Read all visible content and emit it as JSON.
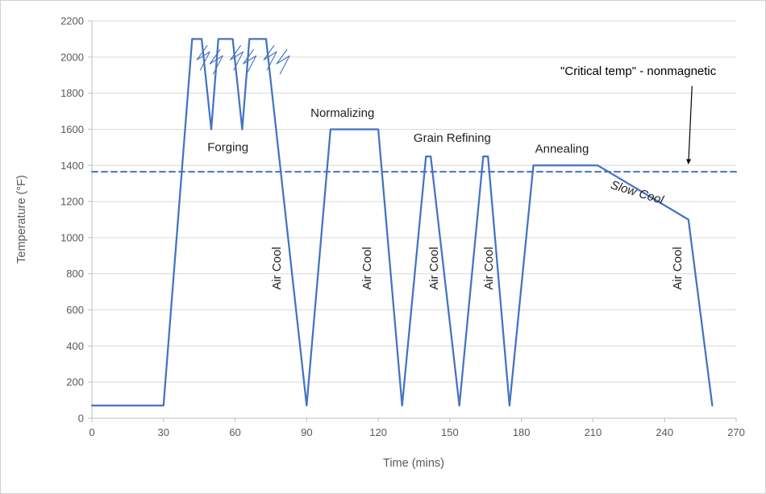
{
  "chart_data": {
    "type": "line",
    "title": "",
    "xlabel": "Time (mins)",
    "ylabel": "Temperature (°F)",
    "xlim": [
      0,
      270
    ],
    "ylim": [
      0,
      2200
    ],
    "x_ticks": [
      0,
      30,
      60,
      90,
      120,
      150,
      180,
      210,
      240,
      270
    ],
    "y_ticks": [
      0,
      200,
      400,
      600,
      800,
      1000,
      1200,
      1400,
      1600,
      1800,
      2000,
      2200
    ],
    "grid": "horizontal-only",
    "legend": "none",
    "colors": {
      "series": "#4472C4",
      "critical_line": "#4472C4",
      "grid": "#D9D9D9",
      "axis": "#BFBFBF",
      "tick_text": "#595959",
      "label_text": "#1f1f1f",
      "annotation": "#000000"
    },
    "series": [
      {
        "name": "heat-treatment-profile",
        "style": "solid",
        "points": [
          [
            0,
            70
          ],
          [
            30,
            70
          ],
          [
            42,
            2100
          ],
          [
            46,
            2100
          ],
          [
            50,
            1600
          ],
          [
            53,
            2100
          ],
          [
            59,
            2100
          ],
          [
            63,
            1600
          ],
          [
            66,
            2100
          ],
          [
            73,
            2100
          ],
          [
            90,
            70
          ],
          [
            100,
            1600
          ],
          [
            120,
            1600
          ],
          [
            130,
            70
          ],
          [
            140,
            1450
          ],
          [
            142,
            1450
          ],
          [
            154,
            70
          ],
          [
            164,
            1450
          ],
          [
            166,
            1450
          ],
          [
            175,
            70
          ],
          [
            185,
            1400
          ],
          [
            212,
            1400
          ],
          [
            250,
            1100
          ],
          [
            260,
            70
          ]
        ]
      },
      {
        "name": "critical-temp-line",
        "style": "dashed",
        "value": 1365,
        "points": [
          [
            0,
            1365
          ],
          [
            270,
            1365
          ]
        ]
      }
    ],
    "process_labels": [
      {
        "text": "Forging",
        "x": 57,
        "y": 1480,
        "rotate": 0
      },
      {
        "text": "Normalizing",
        "x": 105,
        "y": 1670,
        "rotate": 0
      },
      {
        "text": "Grain Refining",
        "x": 151,
        "y": 1530,
        "rotate": 0
      },
      {
        "text": "Annealing",
        "x": 197,
        "y": 1470,
        "rotate": 0
      },
      {
        "text": "Air Cool",
        "x": 79,
        "y": 830,
        "rotate": -90
      },
      {
        "text": "Air Cool",
        "x": 117,
        "y": 830,
        "rotate": -90
      },
      {
        "text": "Air Cool",
        "x": 145,
        "y": 830,
        "rotate": -90
      },
      {
        "text": "Air Cool",
        "x": 168,
        "y": 830,
        "rotate": -90
      },
      {
        "text": "Air Cool",
        "x": 247,
        "y": 830,
        "rotate": -90
      },
      {
        "text": "Slow Cool",
        "x": 228,
        "y": 1230,
        "rotate": 17,
        "italic": true
      }
    ],
    "annotation": {
      "text": "\"Critical temp\" - nonmagnetic",
      "text_x": 229,
      "text_y": 1900,
      "arrow_from": [
        251.5,
        1840
      ],
      "arrow_to": [
        250,
        1410
      ]
    },
    "strike_marks": [
      {
        "x": 44,
        "y": 2065
      },
      {
        "x": 58,
        "y": 2065
      },
      {
        "x": 72,
        "y": 2065
      }
    ]
  }
}
